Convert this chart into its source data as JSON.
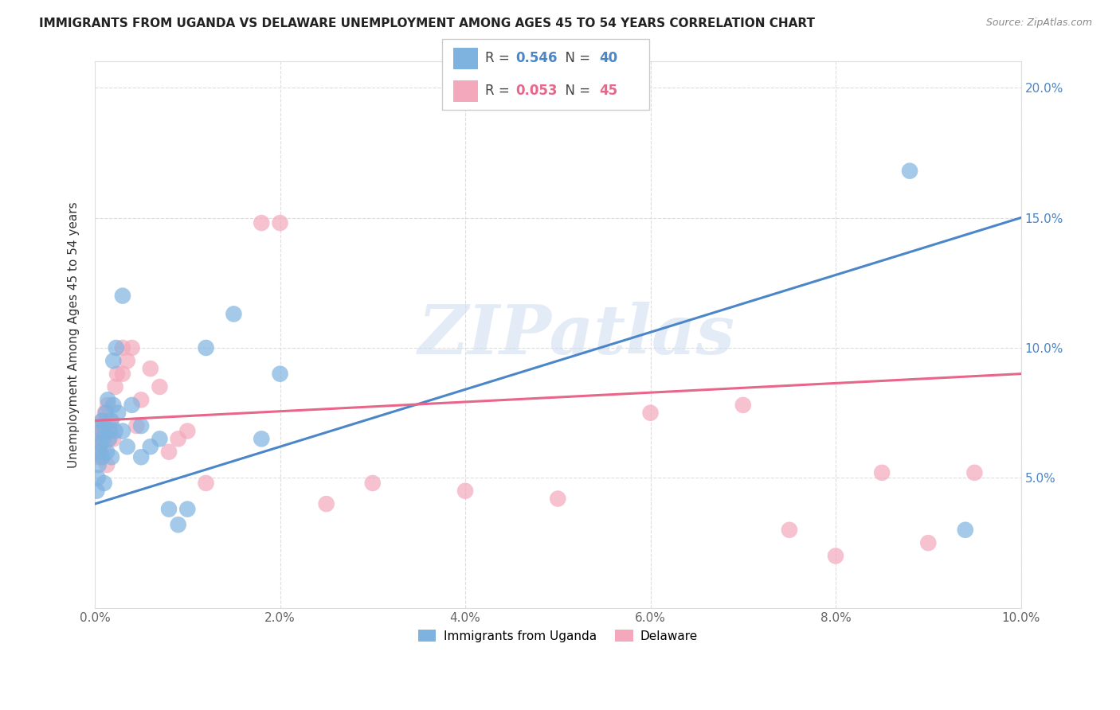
{
  "title": "IMMIGRANTS FROM UGANDA VS DELAWARE UNEMPLOYMENT AMONG AGES 45 TO 54 YEARS CORRELATION CHART",
  "source": "Source: ZipAtlas.com",
  "ylabel": "Unemployment Among Ages 45 to 54 years",
  "legend_label1": "Immigrants from Uganda",
  "legend_label2": "Delaware",
  "r1": 0.546,
  "n1": 40,
  "r2": 0.053,
  "n2": 45,
  "color_blue": "#7EB3E0",
  "color_pink": "#F4A8BC",
  "color_line_blue": "#4A86C8",
  "color_line_pink": "#E8668A",
  "watermark": "ZIPatlas",
  "xlim": [
    0.0,
    0.1
  ],
  "ylim": [
    0.0,
    0.21
  ],
  "yticks": [
    0.05,
    0.1,
    0.15,
    0.2
  ],
  "ytick_labels": [
    "5.0%",
    "10.0%",
    "15.0%",
    "20.0%"
  ],
  "xticks": [
    0.0,
    0.02,
    0.04,
    0.06,
    0.08,
    0.1
  ],
  "xtick_labels": [
    "0.0%",
    "2.0%",
    "4.0%",
    "6.0%",
    "8.0%",
    "10.0%"
  ],
  "blue_scatter_x": [
    0.0002,
    0.0003,
    0.0004,
    0.0005,
    0.0006,
    0.0007,
    0.0008,
    0.0008,
    0.0009,
    0.001,
    0.001,
    0.0012,
    0.0013,
    0.0014,
    0.0015,
    0.0016,
    0.0017,
    0.0018,
    0.002,
    0.002,
    0.0022,
    0.0023,
    0.0025,
    0.003,
    0.003,
    0.0035,
    0.004,
    0.005,
    0.005,
    0.006,
    0.007,
    0.008,
    0.009,
    0.01,
    0.012,
    0.015,
    0.018,
    0.02,
    0.088,
    0.094
  ],
  "blue_scatter_y": [
    0.045,
    0.05,
    0.055,
    0.06,
    0.063,
    0.068,
    0.058,
    0.072,
    0.065,
    0.048,
    0.07,
    0.075,
    0.06,
    0.08,
    0.065,
    0.068,
    0.072,
    0.058,
    0.095,
    0.078,
    0.068,
    0.1,
    0.075,
    0.12,
    0.068,
    0.062,
    0.078,
    0.058,
    0.07,
    0.062,
    0.065,
    0.038,
    0.032,
    0.038,
    0.1,
    0.113,
    0.065,
    0.09,
    0.168,
    0.03
  ],
  "pink_scatter_x": [
    0.0001,
    0.0002,
    0.0003,
    0.0004,
    0.0005,
    0.0006,
    0.0007,
    0.0008,
    0.0009,
    0.001,
    0.0011,
    0.0012,
    0.0013,
    0.0014,
    0.0015,
    0.0016,
    0.0018,
    0.002,
    0.0022,
    0.0024,
    0.003,
    0.003,
    0.0035,
    0.004,
    0.0045,
    0.005,
    0.006,
    0.007,
    0.008,
    0.009,
    0.01,
    0.012,
    0.018,
    0.02,
    0.025,
    0.03,
    0.04,
    0.05,
    0.06,
    0.07,
    0.075,
    0.08,
    0.085,
    0.09,
    0.095
  ],
  "pink_scatter_y": [
    0.065,
    0.06,
    0.068,
    0.058,
    0.07,
    0.062,
    0.065,
    0.072,
    0.068,
    0.063,
    0.075,
    0.068,
    0.055,
    0.078,
    0.07,
    0.065,
    0.072,
    0.065,
    0.085,
    0.09,
    0.1,
    0.09,
    0.095,
    0.1,
    0.07,
    0.08,
    0.092,
    0.085,
    0.06,
    0.065,
    0.068,
    0.048,
    0.148,
    0.148,
    0.04,
    0.048,
    0.045,
    0.042,
    0.075,
    0.078,
    0.03,
    0.02,
    0.052,
    0.025,
    0.052
  ],
  "blue_line_x": [
    0.0,
    0.1
  ],
  "blue_line_y": [
    0.04,
    0.15
  ],
  "pink_line_x": [
    0.0,
    0.1
  ],
  "pink_line_y": [
    0.072,
    0.09
  ]
}
